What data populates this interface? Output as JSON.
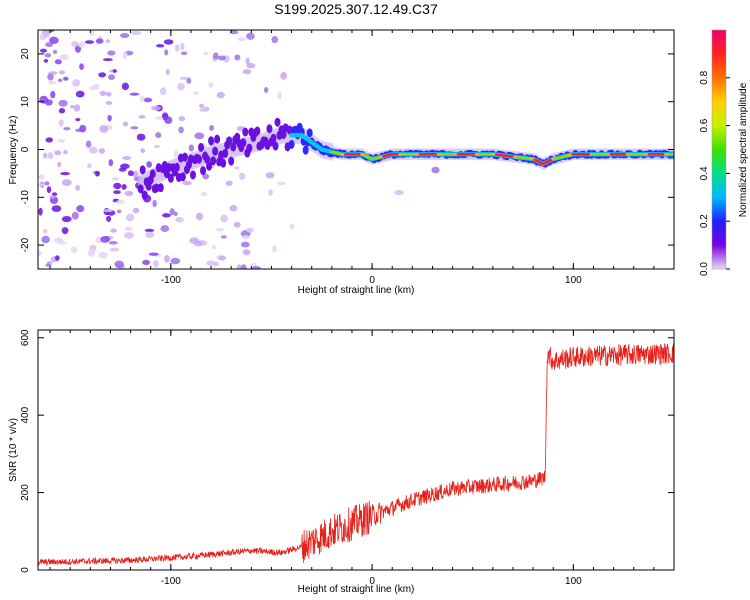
{
  "title": "S199.2025.307.12.49.C37",
  "chart_data": [
    {
      "type": "heatmap",
      "name": "spectrogram",
      "xlabel": "Height of straight line (km)",
      "ylabel": "Frequency (Hz)",
      "xlim": [
        -166,
        150
      ],
      "ylim": [
        -25,
        25
      ],
      "xticks": [
        -100,
        0,
        100
      ],
      "xtick_labels": [
        "-100",
        "0",
        "100"
      ],
      "yticks": [
        -20,
        -10,
        0,
        10,
        20
      ],
      "ytick_labels": [
        "-20",
        "-10",
        "0",
        "10",
        "20"
      ],
      "ridge": {
        "x": [
          -115,
          -100,
          -80,
          -60,
          -45,
          -35,
          -25,
          -15,
          -5,
          0,
          10,
          20,
          40,
          60,
          80,
          85,
          90,
          100,
          110,
          120,
          150
        ],
        "y": [
          -7,
          -4,
          -1,
          1,
          3,
          3,
          0,
          -1,
          -1,
          -2,
          -1,
          -1,
          -1,
          -1,
          -2,
          -3,
          -2,
          -1,
          -1,
          -1,
          -1
        ]
      },
      "colorbar": {
        "label": "Normalized spectral amplitude",
        "range": [
          0,
          1
        ],
        "ticks": [
          0.0,
          0.2,
          0.4,
          0.6,
          0.8
        ],
        "tick_labels": [
          "0.0",
          "0.2",
          "0.4",
          "0.6",
          "0.8"
        ],
        "colors": [
          "#e8d9f5",
          "#7a00e0",
          "#2020ff",
          "#00b8ff",
          "#00e08a",
          "#40e000",
          "#c8f000",
          "#ffd000",
          "#ff7000",
          "#ff2020",
          "#f00070"
        ]
      }
    },
    {
      "type": "line",
      "name": "snr",
      "xlabel": "Height of straight line (km)",
      "ylabel": "SNR (10 * v/v)",
      "xlim": [
        -166,
        150
      ],
      "ylim": [
        0,
        620
      ],
      "xticks": [
        -100,
        0,
        100
      ],
      "xtick_labels": [
        "-100",
        "0",
        "100"
      ],
      "yticks": [
        0,
        200,
        400,
        600
      ],
      "ytick_labels": [
        "0",
        "200",
        "400",
        "600"
      ],
      "color": "#e8201a",
      "trend": {
        "x": [
          -166,
          -120,
          -90,
          -60,
          -45,
          -35,
          -20,
          0,
          20,
          40,
          60,
          80,
          86,
          87,
          90,
          100,
          120,
          150
        ],
        "y": [
          20,
          25,
          35,
          50,
          45,
          60,
          100,
          140,
          180,
          210,
          220,
          230,
          240,
          560,
          540,
          550,
          555,
          560
        ]
      }
    }
  ]
}
